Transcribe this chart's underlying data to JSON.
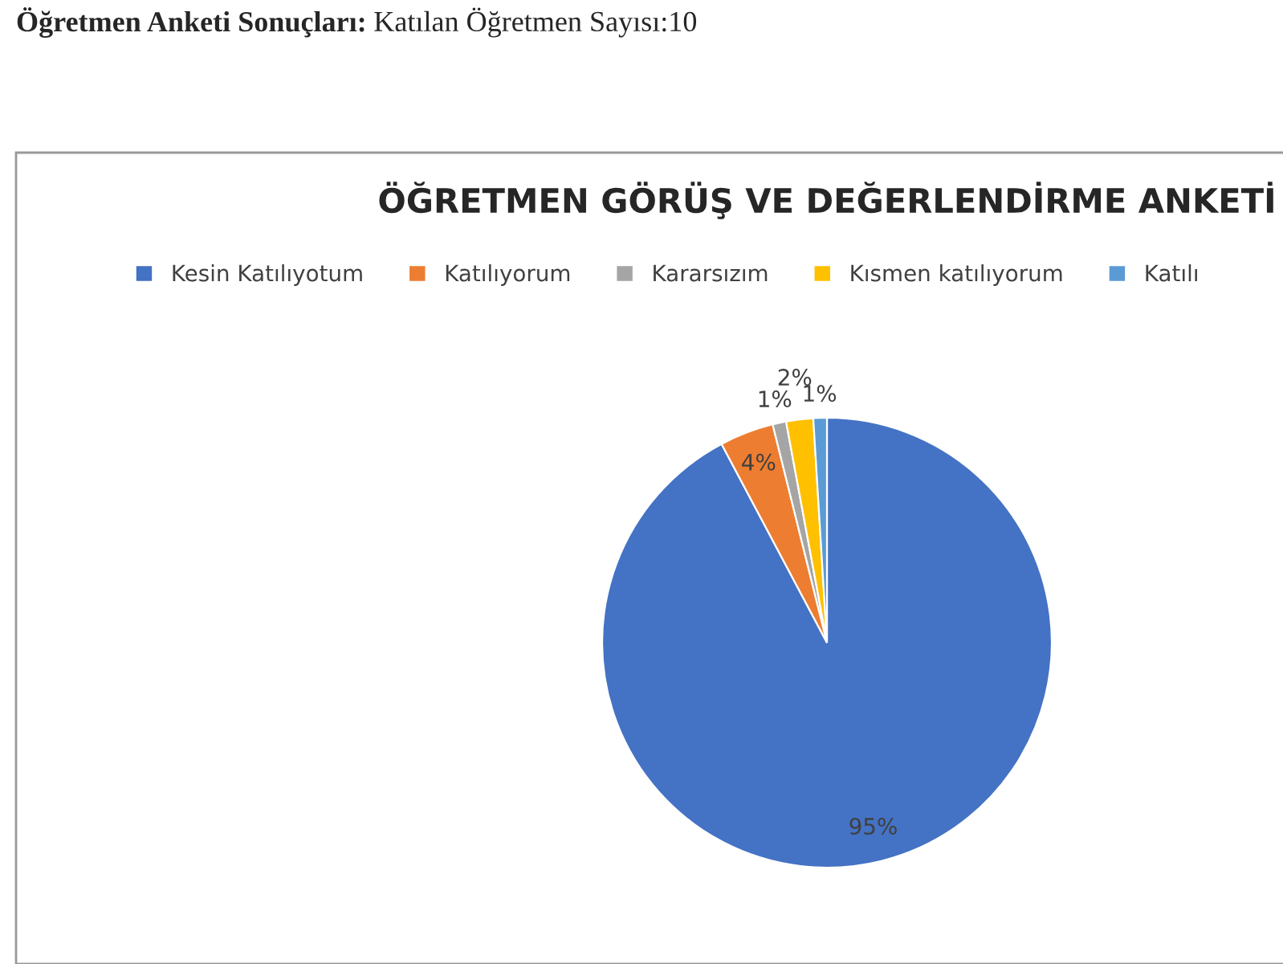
{
  "chart_data": {
    "type": "pie",
    "title": "ÖĞRETMEN GÖRÜŞ VE DEĞERLENDİRME ANKETİ",
    "annotations": [
      "Öğretmen Anketi Sonuçları:",
      "Katılan Öğretmen Sayısı:10"
    ],
    "categories": [
      "Kesin Katılıyotum",
      "Katılıyorum",
      "Kararsızım",
      "Kısmen katılıyorum",
      "Katılı"
    ],
    "values": [
      95,
      4,
      1,
      2,
      1
    ],
    "colors": [
      "#4472c4",
      "#ed7d31",
      "#a5a5a5",
      "#ffc000",
      "#5b9bd5"
    ],
    "value_labels": [
      "95%",
      "4%",
      "1%",
      "2%",
      "1%"
    ],
    "legend": "top"
  }
}
